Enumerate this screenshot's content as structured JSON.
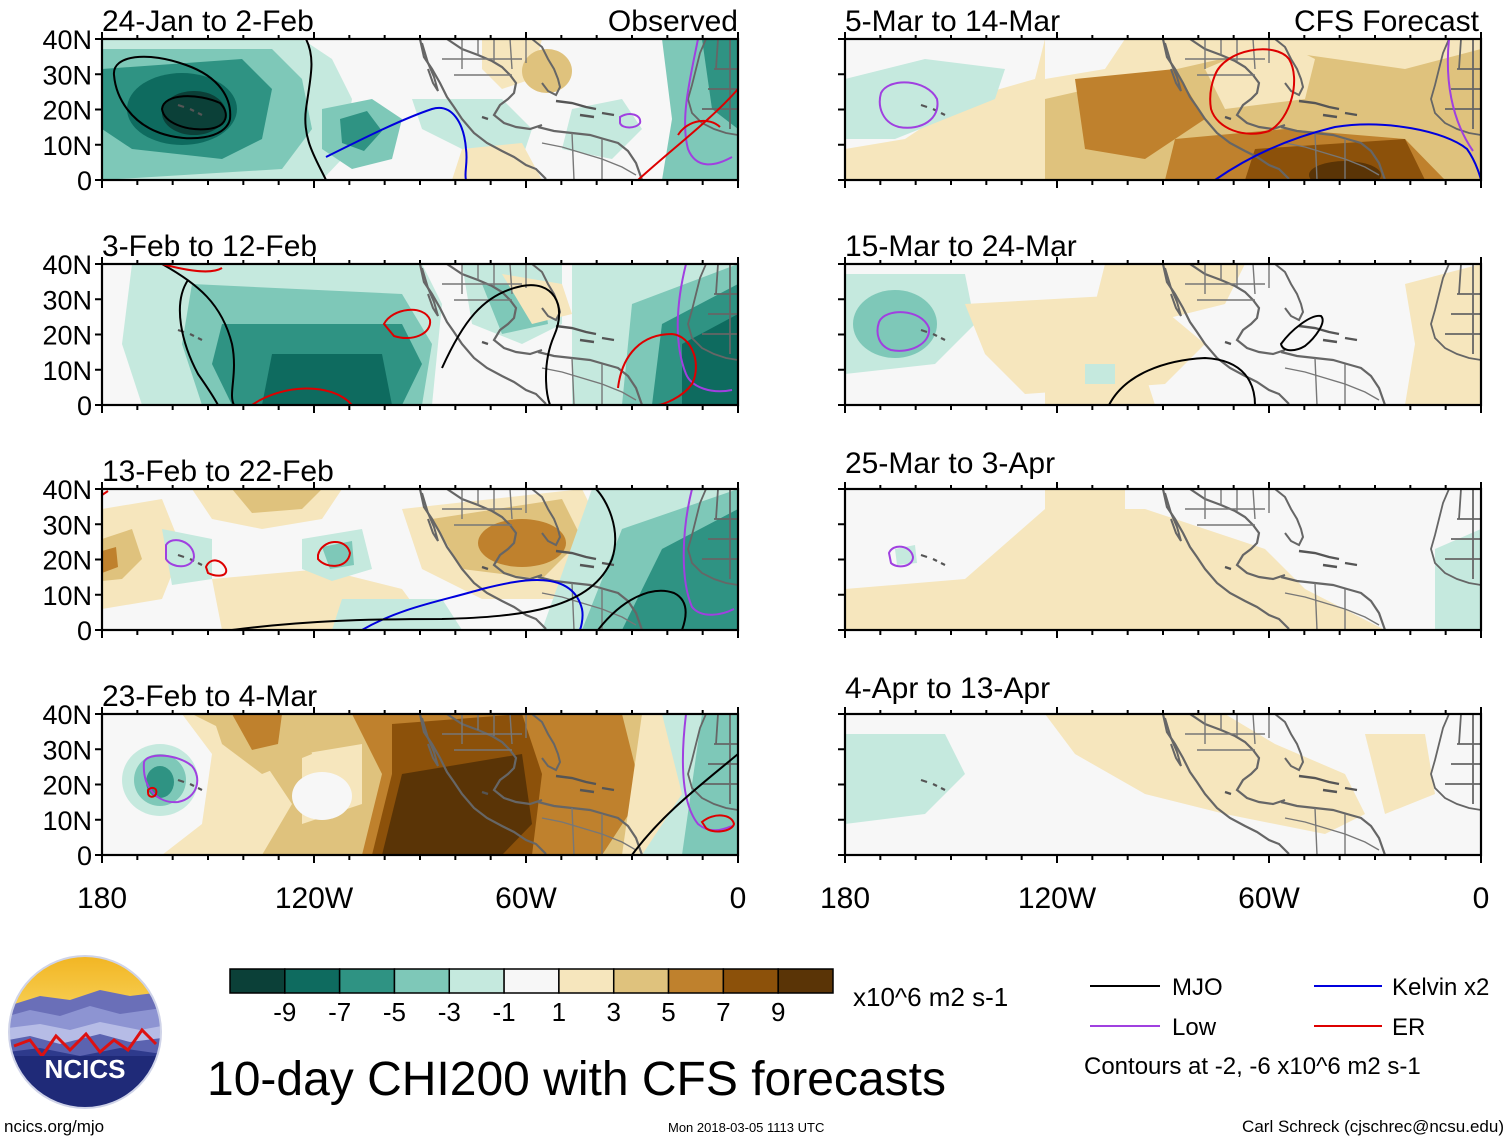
{
  "main_title": "10-day CHI200 with CFS forecasts",
  "left_header": "Observed",
  "right_header": "CFS Forecast",
  "panels_left": [
    {
      "title": "24-Jan to 2-Feb"
    },
    {
      "title": "3-Feb to 12-Feb"
    },
    {
      "title": "13-Feb to 22-Feb"
    },
    {
      "title": "23-Feb to 4-Mar"
    }
  ],
  "panels_right": [
    {
      "title": "5-Mar to 14-Mar"
    },
    {
      "title": "15-Mar to 24-Mar"
    },
    {
      "title": "25-Mar to 3-Apr"
    },
    {
      "title": "4-Apr to 13-Apr"
    }
  ],
  "lat_ticks": [
    "40N",
    "30N",
    "20N",
    "10N",
    "0"
  ],
  "lon_ticks": [
    "180",
    "120W",
    "60W",
    "0"
  ],
  "colorbar": {
    "labels": [
      "-9",
      "-7",
      "-5",
      "-3",
      "-1",
      "1",
      "3",
      "5",
      "7",
      "9"
    ],
    "colors": [
      "#0b4038",
      "#0e6b5f",
      "#2f9383",
      "#7ec8b8",
      "#c5e9de",
      "#f7f7f7",
      "#f6e6bd",
      "#dfc27d",
      "#bf812d",
      "#8c510a",
      "#5a3406"
    ],
    "units": "x10^6 m2 s-1"
  },
  "legend": {
    "items": [
      {
        "label": "MJO",
        "color": "#000000"
      },
      {
        "label": "Kelvin x2",
        "color": "#0000dd"
      },
      {
        "label": "Low",
        "color": "#a040e0"
      },
      {
        "label": "ER",
        "color": "#dd0000"
      }
    ],
    "note": "Contours at -2, -6 x10^6 m2 s-1"
  },
  "logo_text": "NCICS",
  "footer": {
    "url": "ncics.org/mjo",
    "timestamp": "Mon 2018-03-05 1113 UTC",
    "author": "Carl Schreck (cjschrec@ncsu.edu)"
  }
}
